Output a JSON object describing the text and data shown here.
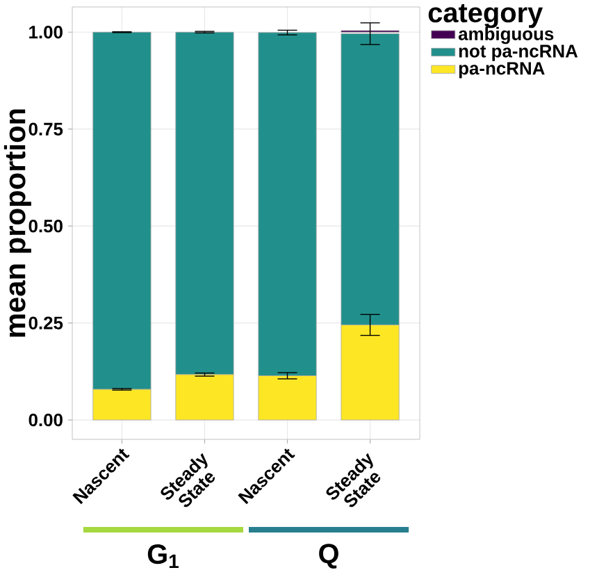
{
  "chart_data": {
    "type": "bar",
    "stacked": true,
    "ylabel": "mean proportion",
    "legend_title": "category",
    "categories": [
      "Nascent",
      "Steady State",
      "Nascent",
      "Steady State"
    ],
    "series": [
      {
        "name": "pa-ncRNA",
        "color": "#fde725",
        "values": [
          0.079,
          0.117,
          0.114,
          0.245
        ],
        "errors": [
          0.002,
          0.004,
          0.008,
          0.027
        ]
      },
      {
        "name": "not pa-ncRNA",
        "color": "#21908c",
        "values": [
          0.921,
          0.883,
          0.885,
          0.751
        ],
        "errors": [
          0.001,
          0.002,
          0.006,
          0.028
        ]
      },
      {
        "name": "ambiguous",
        "color": "#440154",
        "values": [
          null,
          null,
          null,
          0.004
        ]
      }
    ],
    "ylim": [
      -0.05,
      1.065
    ],
    "yticks": [
      {
        "value": 0,
        "label": "0.00"
      },
      {
        "value": 0.25,
        "label": "0.25"
      },
      {
        "value": 0.5,
        "label": "0.50"
      },
      {
        "value": 0.75,
        "label": "0.75"
      },
      {
        "value": 1,
        "label": "1.00"
      }
    ],
    "grid": true,
    "legend": "right",
    "annotations": [
      "G$_{1}$",
      "Q"
    ]
  }
}
